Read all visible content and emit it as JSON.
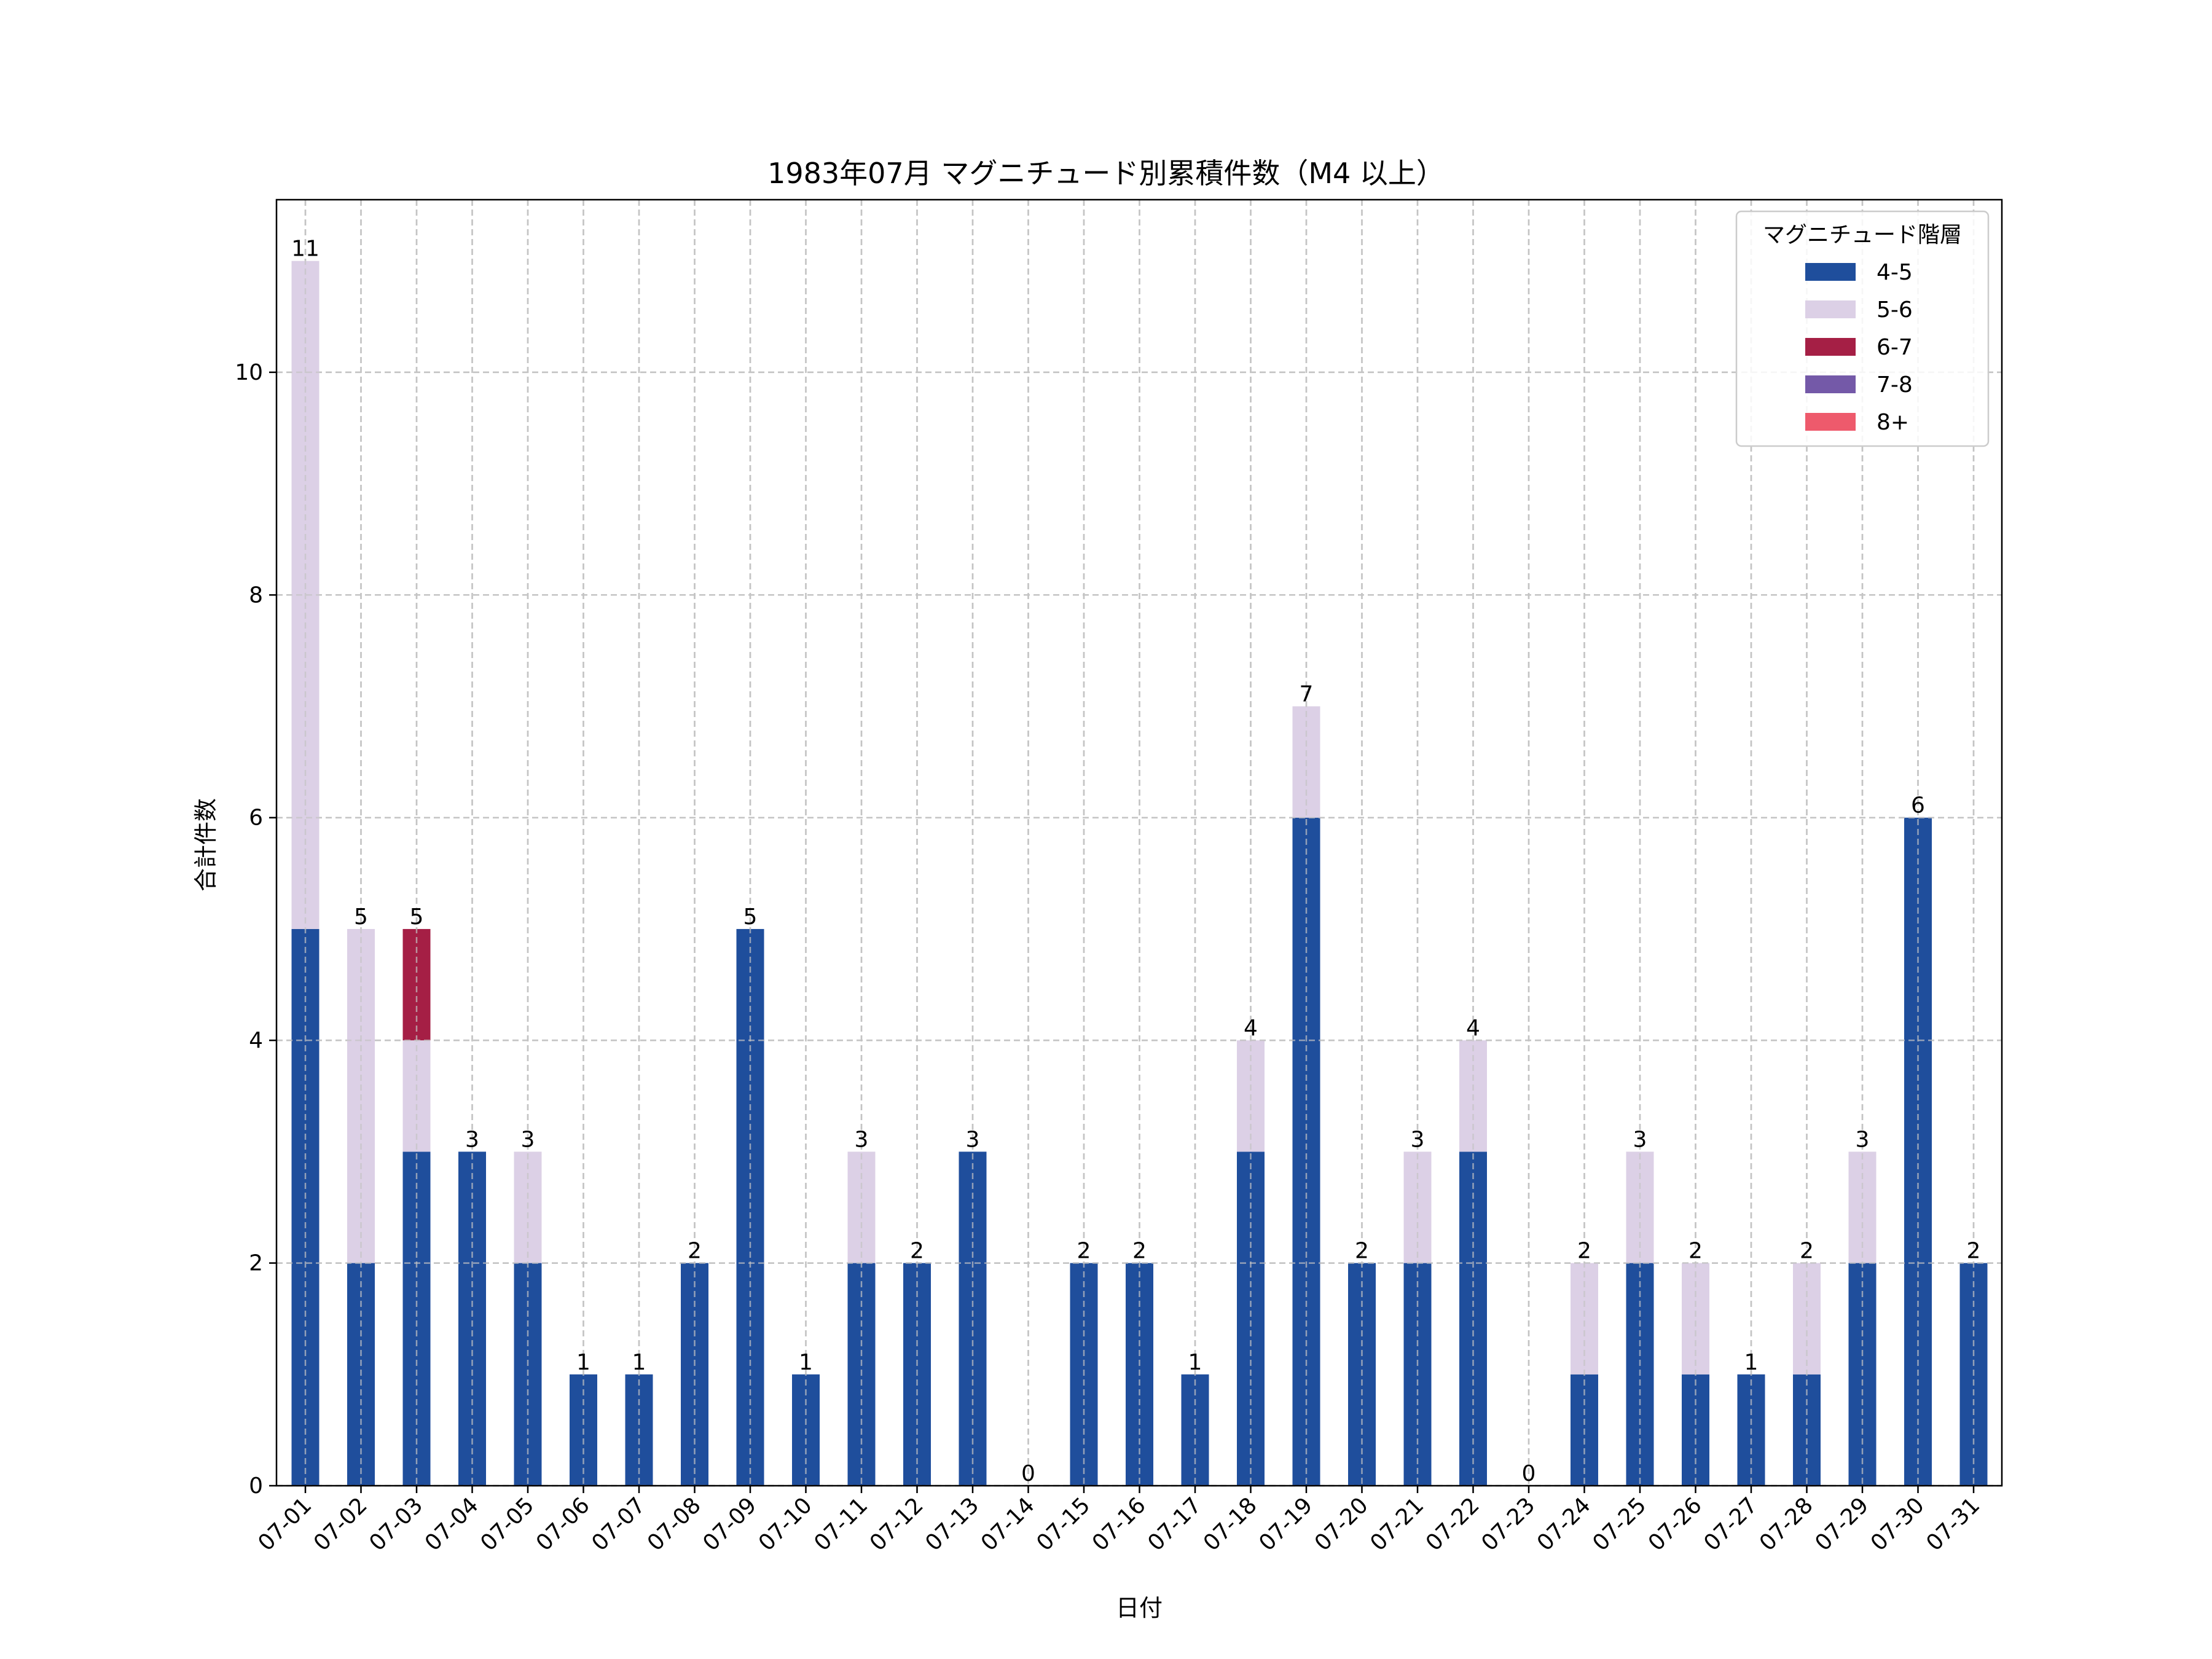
{
  "chart_data": {
    "type": "bar",
    "stacked": true,
    "title": "1983年07月 マグニチュード別累積件数（M4 以上）",
    "xlabel": "日付",
    "ylabel": "合計件数",
    "ylim": [
      0,
      11.55
    ],
    "yticks": [
      0,
      2,
      4,
      6,
      8,
      10
    ],
    "grid": true,
    "legend_position": "top-right",
    "legend_title": "マグニチュード階層",
    "categories": [
      "07-01",
      "07-02",
      "07-03",
      "07-04",
      "07-05",
      "07-06",
      "07-07",
      "07-08",
      "07-09",
      "07-10",
      "07-11",
      "07-12",
      "07-13",
      "07-14",
      "07-15",
      "07-16",
      "07-17",
      "07-18",
      "07-19",
      "07-20",
      "07-21",
      "07-22",
      "07-23",
      "07-24",
      "07-25",
      "07-26",
      "07-27",
      "07-28",
      "07-29",
      "07-30",
      "07-31"
    ],
    "series": [
      {
        "name": "4-5",
        "color": "#1f4e9c",
        "values": [
          5,
          2,
          3,
          3,
          2,
          1,
          1,
          2,
          5,
          1,
          2,
          2,
          3,
          0,
          2,
          2,
          1,
          3,
          6,
          2,
          2,
          3,
          0,
          1,
          2,
          1,
          1,
          1,
          2,
          6,
          2
        ]
      },
      {
        "name": "5-6",
        "color": "#dcd0e6",
        "values": [
          6,
          3,
          1,
          0,
          1,
          0,
          0,
          0,
          0,
          0,
          1,
          0,
          0,
          0,
          0,
          0,
          0,
          1,
          1,
          0,
          1,
          1,
          0,
          1,
          1,
          1,
          0,
          1,
          1,
          0,
          0
        ]
      },
      {
        "name": "6-7",
        "color": "#a51f45",
        "values": [
          0,
          0,
          1,
          0,
          0,
          0,
          0,
          0,
          0,
          0,
          0,
          0,
          0,
          0,
          0,
          0,
          0,
          0,
          0,
          0,
          0,
          0,
          0,
          0,
          0,
          0,
          0,
          0,
          0,
          0,
          0
        ]
      },
      {
        "name": "7-8",
        "color": "#7459a8",
        "values": [
          0,
          0,
          0,
          0,
          0,
          0,
          0,
          0,
          0,
          0,
          0,
          0,
          0,
          0,
          0,
          0,
          0,
          0,
          0,
          0,
          0,
          0,
          0,
          0,
          0,
          0,
          0,
          0,
          0,
          0,
          0
        ]
      },
      {
        "name": "8+",
        "color": "#ee5a6c",
        "values": [
          0,
          0,
          0,
          0,
          0,
          0,
          0,
          0,
          0,
          0,
          0,
          0,
          0,
          0,
          0,
          0,
          0,
          0,
          0,
          0,
          0,
          0,
          0,
          0,
          0,
          0,
          0,
          0,
          0,
          0,
          0
        ]
      }
    ],
    "totals": [
      11,
      5,
      5,
      3,
      3,
      1,
      1,
      2,
      5,
      1,
      3,
      2,
      3,
      0,
      2,
      2,
      1,
      4,
      7,
      2,
      3,
      4,
      0,
      2,
      3,
      2,
      1,
      2,
      3,
      6,
      2
    ]
  }
}
